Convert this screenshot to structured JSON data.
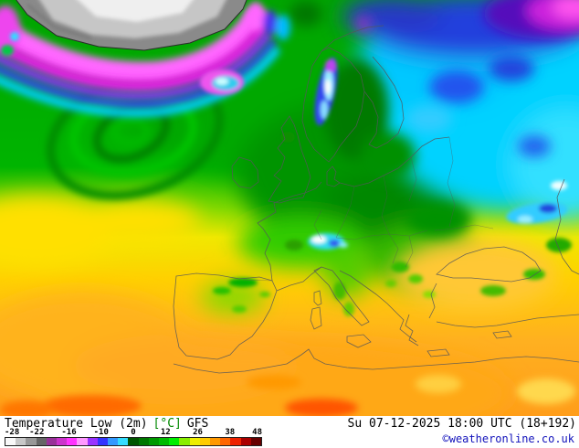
{
  "map": {
    "parameter_label": "Temperature Low (2m)",
    "unit_label": "[°C]",
    "model_label": "GFS",
    "valid_time": "Su 07-12-2025 18:00 UTC (18+192)",
    "copyright": "©weatheronline.co.uk",
    "region": "Europe"
  },
  "legend": {
    "tick_labels": [
      "-28",
      "-22",
      "-16",
      "-10",
      "0",
      "12",
      "26",
      "38",
      "48"
    ],
    "gradient_colors": [
      "#f8f8f8",
      "#c8c8c8",
      "#989898",
      "#666666",
      "#993299",
      "#cc33cc",
      "#ff33ff",
      "#ff99ff",
      "#9933ff",
      "#3333ff",
      "#3399ff",
      "#33ddff",
      "#005500",
      "#007700",
      "#009900",
      "#00bb00",
      "#00ee00",
      "#88ee00",
      "#eeee00",
      "#ffcc00",
      "#ff9900",
      "#ff6600",
      "#ee2200",
      "#aa0000",
      "#660000"
    ]
  },
  "palette": {
    "ice_gray": "#c8c8c8",
    "coldest_magenta": "#ee22ee",
    "cold_blue": "#2233ee",
    "cool_cyan": "#00d2ff",
    "mild_green": "#00a800",
    "warm_yellow": "#ffd000",
    "hot_orange": "#ffa818",
    "hottest_red": "#ff5500"
  }
}
